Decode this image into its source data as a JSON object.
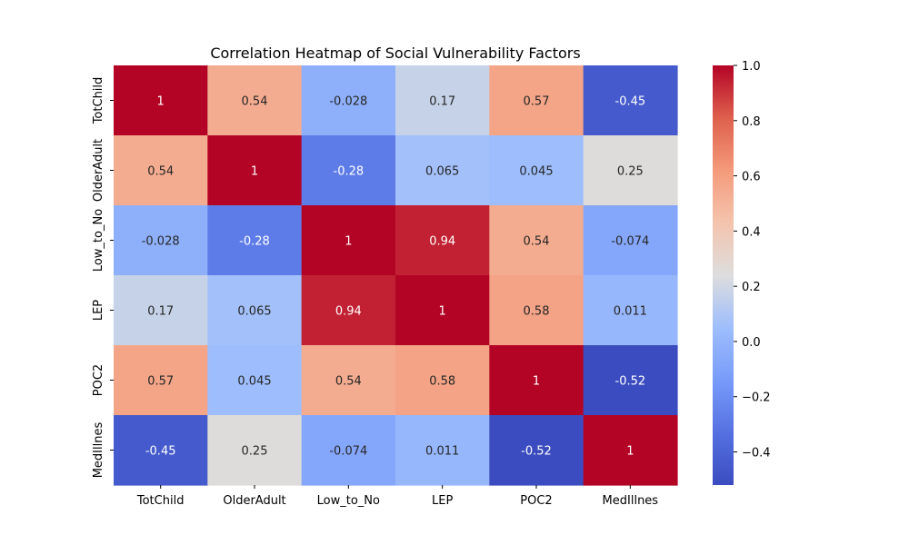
{
  "chart_data": {
    "type": "heatmap",
    "title": "Correlation Heatmap of Social Vulnerability Factors",
    "xlabel": "",
    "ylabel": "",
    "x_categories": [
      "TotChild",
      "OlderAdult",
      "Low_to_No",
      "LEP",
      "POC2",
      "MedIllnes"
    ],
    "y_categories": [
      "TotChild",
      "OlderAdult",
      "Low_to_No",
      "LEP",
      "POC2",
      "MedIllnes"
    ],
    "values": [
      [
        1,
        0.54,
        -0.028,
        0.17,
        0.57,
        -0.45
      ],
      [
        0.54,
        1,
        -0.28,
        0.065,
        0.045,
        0.25
      ],
      [
        -0.028,
        -0.28,
        1,
        0.94,
        0.54,
        -0.074
      ],
      [
        0.17,
        0.065,
        0.94,
        1,
        0.58,
        0.011
      ],
      [
        0.57,
        0.045,
        0.54,
        0.58,
        1,
        -0.52
      ],
      [
        -0.45,
        0.25,
        -0.074,
        0.011,
        -0.52,
        1
      ]
    ],
    "annotations": [
      [
        "1",
        "0.54",
        "-0.028",
        "0.17",
        "0.57",
        "-0.45"
      ],
      [
        "0.54",
        "1",
        "-0.28",
        "0.065",
        "0.045",
        "0.25"
      ],
      [
        "-0.028",
        "-0.28",
        "1",
        "0.94",
        "0.54",
        "-0.074"
      ],
      [
        "0.17",
        "0.065",
        "0.94",
        "1",
        "0.58",
        "0.011"
      ],
      [
        "0.57",
        "0.045",
        "0.54",
        "0.58",
        "1",
        "-0.52"
      ],
      [
        "-0.45",
        "0.25",
        "-0.074",
        "0.011",
        "-0.52",
        "1"
      ]
    ],
    "colormap": "coolwarm",
    "color_range": [
      -0.52,
      1.0
    ],
    "colorbar_ticks": [
      1.0,
      0.8,
      0.6,
      0.4,
      0.2,
      0.0,
      -0.2,
      -0.4
    ],
    "colorbar_tick_labels": [
      "1.0",
      "0.8",
      "0.6",
      "0.4",
      "0.2",
      "0.0",
      "−0.2",
      "−0.4"
    ],
    "grid": false,
    "legend": "colorbar-right"
  }
}
